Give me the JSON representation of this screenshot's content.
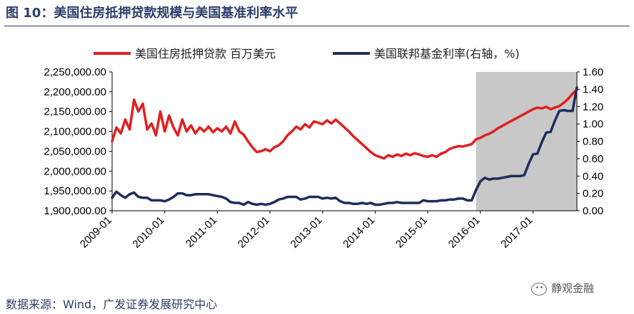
{
  "figure": {
    "title": "图 10：美国住房抵押贷款规模与美国基准利率水平",
    "source": "数据来源：Wind，广发证券发展研究中心",
    "watermark": "静观金融"
  },
  "chart_data": {
    "type": "line",
    "title": "图 10：美国住房抵押贷款规模与美国基准利率水平",
    "x_axis": {
      "type": "time",
      "range": [
        "2009-01",
        "2017-11"
      ],
      "ticks": [
        "2009-01",
        "2010-01",
        "2011-01",
        "2012-01",
        "2013-01",
        "2014-01",
        "2015-01",
        "2016-01",
        "2017-01"
      ]
    },
    "y_left": {
      "range": [
        1900000,
        2250000
      ],
      "ticks": [
        "1,900,000.00",
        "1,950,000.00",
        "2,000,000.00",
        "2,050,000.00",
        "2,100,000.00",
        "2,150,000.00",
        "2,200,000.00",
        "2,250,000.00"
      ]
    },
    "y_right": {
      "range": [
        0,
        1.6
      ],
      "ticks": [
        "0.00",
        "0.20",
        "0.40",
        "0.60",
        "0.80",
        "1.00",
        "1.20",
        "1.40",
        "1.60"
      ]
    },
    "legend_position": "top",
    "shaded_region": {
      "from": "2015-12",
      "to": "2017-11",
      "color": "#c8c8c8"
    },
    "series": [
      {
        "name": "美国住房抵押贷款 百万美元",
        "axis": "left",
        "color": "#e02020",
        "points": [
          [
            "2009-01",
            2075000
          ],
          [
            "2009-02",
            2110000
          ],
          [
            "2009-03",
            2095000
          ],
          [
            "2009-04",
            2130000
          ],
          [
            "2009-05",
            2105000
          ],
          [
            "2009-06",
            2180000
          ],
          [
            "2009-07",
            2150000
          ],
          [
            "2009-08",
            2170000
          ],
          [
            "2009-09",
            2105000
          ],
          [
            "2009-10",
            2120000
          ],
          [
            "2009-11",
            2090000
          ],
          [
            "2009-12",
            2150000
          ],
          [
            "2010-01",
            2100000
          ],
          [
            "2010-02",
            2140000
          ],
          [
            "2010-03",
            2110000
          ],
          [
            "2010-04",
            2090000
          ],
          [
            "2010-05",
            2130000
          ],
          [
            "2010-06",
            2100000
          ],
          [
            "2010-07",
            2115000
          ],
          [
            "2010-08",
            2095000
          ],
          [
            "2010-09",
            2110000
          ],
          [
            "2010-10",
            2100000
          ],
          [
            "2010-11",
            2112000
          ],
          [
            "2010-12",
            2098000
          ],
          [
            "2011-01",
            2108000
          ],
          [
            "2011-02",
            2100000
          ],
          [
            "2011-03",
            2112000
          ],
          [
            "2011-04",
            2095000
          ],
          [
            "2011-05",
            2125000
          ],
          [
            "2011-06",
            2100000
          ],
          [
            "2011-07",
            2092000
          ],
          [
            "2011-08",
            2075000
          ],
          [
            "2011-09",
            2060000
          ],
          [
            "2011-10",
            2048000
          ],
          [
            "2011-11",
            2050000
          ],
          [
            "2011-12",
            2055000
          ],
          [
            "2012-01",
            2050000
          ],
          [
            "2012-02",
            2060000
          ],
          [
            "2012-03",
            2065000
          ],
          [
            "2012-04",
            2075000
          ],
          [
            "2012-05",
            2090000
          ],
          [
            "2012-06",
            2100000
          ],
          [
            "2012-07",
            2112000
          ],
          [
            "2012-08",
            2105000
          ],
          [
            "2012-09",
            2118000
          ],
          [
            "2012-10",
            2110000
          ],
          [
            "2012-11",
            2125000
          ],
          [
            "2012-12",
            2122000
          ],
          [
            "2013-01",
            2118000
          ],
          [
            "2013-02",
            2128000
          ],
          [
            "2013-03",
            2120000
          ],
          [
            "2013-04",
            2130000
          ],
          [
            "2013-05",
            2120000
          ],
          [
            "2013-06",
            2110000
          ],
          [
            "2013-07",
            2100000
          ],
          [
            "2013-08",
            2088000
          ],
          [
            "2013-09",
            2078000
          ],
          [
            "2013-10",
            2068000
          ],
          [
            "2013-11",
            2058000
          ],
          [
            "2013-12",
            2048000
          ],
          [
            "2014-01",
            2040000
          ],
          [
            "2014-02",
            2036000
          ],
          [
            "2014-03",
            2032000
          ],
          [
            "2014-04",
            2040000
          ],
          [
            "2014-05",
            2036000
          ],
          [
            "2014-06",
            2042000
          ],
          [
            "2014-07",
            2038000
          ],
          [
            "2014-08",
            2044000
          ],
          [
            "2014-09",
            2040000
          ],
          [
            "2014-10",
            2045000
          ],
          [
            "2014-11",
            2042000
          ],
          [
            "2014-12",
            2038000
          ],
          [
            "2015-01",
            2036000
          ],
          [
            "2015-02",
            2040000
          ],
          [
            "2015-03",
            2036000
          ],
          [
            "2015-04",
            2044000
          ],
          [
            "2015-05",
            2048000
          ],
          [
            "2015-06",
            2056000
          ],
          [
            "2015-07",
            2060000
          ],
          [
            "2015-08",
            2063000
          ],
          [
            "2015-09",
            2062000
          ],
          [
            "2015-10",
            2065000
          ],
          [
            "2015-11",
            2068000
          ],
          [
            "2015-12",
            2080000
          ],
          [
            "2016-01",
            2084000
          ],
          [
            "2016-02",
            2090000
          ],
          [
            "2016-03",
            2094000
          ],
          [
            "2016-04",
            2100000
          ],
          [
            "2016-05",
            2108000
          ],
          [
            "2016-06",
            2114000
          ],
          [
            "2016-07",
            2120000
          ],
          [
            "2016-08",
            2126000
          ],
          [
            "2016-09",
            2132000
          ],
          [
            "2016-10",
            2138000
          ],
          [
            "2016-11",
            2144000
          ],
          [
            "2016-12",
            2150000
          ],
          [
            "2017-01",
            2156000
          ],
          [
            "2017-02",
            2160000
          ],
          [
            "2017-03",
            2158000
          ],
          [
            "2017-04",
            2162000
          ],
          [
            "2017-05",
            2156000
          ],
          [
            "2017-06",
            2160000
          ],
          [
            "2017-07",
            2164000
          ],
          [
            "2017-08",
            2172000
          ],
          [
            "2017-09",
            2182000
          ],
          [
            "2017-10",
            2195000
          ],
          [
            "2017-11",
            2205000
          ]
        ]
      },
      {
        "name": "美国联邦基金利率(右轴，%)",
        "axis": "right",
        "color": "#1f2d5c",
        "points": [
          [
            "2009-01",
            0.15
          ],
          [
            "2009-02",
            0.22
          ],
          [
            "2009-03",
            0.18
          ],
          [
            "2009-04",
            0.15
          ],
          [
            "2009-05",
            0.19
          ],
          [
            "2009-06",
            0.21
          ],
          [
            "2009-07",
            0.16
          ],
          [
            "2009-08",
            0.15
          ],
          [
            "2009-09",
            0.15
          ],
          [
            "2009-10",
            0.12
          ],
          [
            "2009-11",
            0.12
          ],
          [
            "2009-12",
            0.12
          ],
          [
            "2010-01",
            0.11
          ],
          [
            "2010-02",
            0.13
          ],
          [
            "2010-03",
            0.16
          ],
          [
            "2010-04",
            0.2
          ],
          [
            "2010-05",
            0.2
          ],
          [
            "2010-06",
            0.18
          ],
          [
            "2010-07",
            0.18
          ],
          [
            "2010-08",
            0.19
          ],
          [
            "2010-09",
            0.19
          ],
          [
            "2010-10",
            0.19
          ],
          [
            "2010-11",
            0.19
          ],
          [
            "2010-12",
            0.18
          ],
          [
            "2011-01",
            0.17
          ],
          [
            "2011-02",
            0.16
          ],
          [
            "2011-03",
            0.14
          ],
          [
            "2011-04",
            0.1
          ],
          [
            "2011-05",
            0.09
          ],
          [
            "2011-06",
            0.09
          ],
          [
            "2011-07",
            0.07
          ],
          [
            "2011-08",
            0.1
          ],
          [
            "2011-09",
            0.08
          ],
          [
            "2011-10",
            0.07
          ],
          [
            "2011-11",
            0.08
          ],
          [
            "2011-12",
            0.07
          ],
          [
            "2012-01",
            0.08
          ],
          [
            "2012-02",
            0.1
          ],
          [
            "2012-03",
            0.13
          ],
          [
            "2012-04",
            0.14
          ],
          [
            "2012-05",
            0.16
          ],
          [
            "2012-06",
            0.16
          ],
          [
            "2012-07",
            0.16
          ],
          [
            "2012-08",
            0.13
          ],
          [
            "2012-09",
            0.14
          ],
          [
            "2012-10",
            0.16
          ],
          [
            "2012-11",
            0.16
          ],
          [
            "2012-12",
            0.16
          ],
          [
            "2013-01",
            0.14
          ],
          [
            "2013-02",
            0.15
          ],
          [
            "2013-03",
            0.14
          ],
          [
            "2013-04",
            0.15
          ],
          [
            "2013-05",
            0.11
          ],
          [
            "2013-06",
            0.09
          ],
          [
            "2013-07",
            0.09
          ],
          [
            "2013-08",
            0.08
          ],
          [
            "2013-09",
            0.08
          ],
          [
            "2013-10",
            0.09
          ],
          [
            "2013-11",
            0.08
          ],
          [
            "2013-12",
            0.09
          ],
          [
            "2014-01",
            0.07
          ],
          [
            "2014-02",
            0.07
          ],
          [
            "2014-03",
            0.08
          ],
          [
            "2014-04",
            0.09
          ],
          [
            "2014-05",
            0.09
          ],
          [
            "2014-06",
            0.1
          ],
          [
            "2014-07",
            0.09
          ],
          [
            "2014-08",
            0.09
          ],
          [
            "2014-09",
            0.09
          ],
          [
            "2014-10",
            0.09
          ],
          [
            "2014-11",
            0.09
          ],
          [
            "2014-12",
            0.12
          ],
          [
            "2015-01",
            0.11
          ],
          [
            "2015-02",
            0.11
          ],
          [
            "2015-03",
            0.11
          ],
          [
            "2015-04",
            0.12
          ],
          [
            "2015-05",
            0.12
          ],
          [
            "2015-06",
            0.13
          ],
          [
            "2015-07",
            0.13
          ],
          [
            "2015-08",
            0.14
          ],
          [
            "2015-09",
            0.14
          ],
          [
            "2015-10",
            0.12
          ],
          [
            "2015-11",
            0.12
          ],
          [
            "2015-12",
            0.24
          ],
          [
            "2016-01",
            0.34
          ],
          [
            "2016-02",
            0.38
          ],
          [
            "2016-03",
            0.36
          ],
          [
            "2016-04",
            0.37
          ],
          [
            "2016-05",
            0.37
          ],
          [
            "2016-06",
            0.38
          ],
          [
            "2016-07",
            0.39
          ],
          [
            "2016-08",
            0.4
          ],
          [
            "2016-09",
            0.4
          ],
          [
            "2016-10",
            0.4
          ],
          [
            "2016-11",
            0.41
          ],
          [
            "2016-12",
            0.54
          ],
          [
            "2017-01",
            0.65
          ],
          [
            "2017-02",
            0.66
          ],
          [
            "2017-03",
            0.79
          ],
          [
            "2017-04",
            0.9
          ],
          [
            "2017-05",
            0.91
          ],
          [
            "2017-06",
            1.04
          ],
          [
            "2017-07",
            1.15
          ],
          [
            "2017-08",
            1.16
          ],
          [
            "2017-09",
            1.15
          ],
          [
            "2017-10",
            1.15
          ],
          [
            "2017-11",
            1.42
          ]
        ]
      }
    ]
  }
}
